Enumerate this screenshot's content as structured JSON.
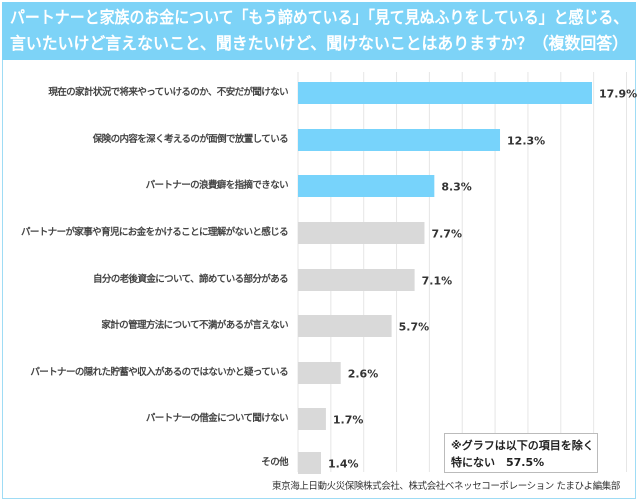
{
  "title_lines": [
    "パートナーと家族のお金について「もう諦めている」「見て見ぬふりをしている」と感じる、",
    "言いたいけど言えないこと、聞きたいけど、聞けないことはありますか？（複数回答）"
  ],
  "chart_data": {
    "type": "bar",
    "orientation": "horizontal",
    "categories": [
      "現在の家計状況で将来やっていけるのか、不安だが聞けない",
      "保険の内容を深く考えるのが面倒で放置している",
      "パートナーの浪費癖を指摘できない",
      "パートナーが家事や育児にお金をかけることに理解がないと感じる",
      "自分の老後資金について、諦めている部分がある",
      "家計の管理方法について不満があるが言えない",
      "パートナーの隠れた貯蓄や収入があるのではないかと疑っている",
      "パートナーの借金について聞けない",
      "その他"
    ],
    "values": [
      17.9,
      12.3,
      8.3,
      7.7,
      7.1,
      5.7,
      2.6,
      1.7,
      1.4
    ],
    "labels": [
      "17.9%",
      "12.3%",
      "8.3%",
      "7.7%",
      "7.1%",
      "5.7%",
      "2.6%",
      "1.7%",
      "1.4%"
    ],
    "highlight_count": 3,
    "colors": {
      "highlight": "#77d3fb",
      "default": "#d9d9d9",
      "grid": "#e6e6e6"
    },
    "xlim": [
      0,
      20
    ],
    "grid_step": 2,
    "grid": true
  },
  "note": {
    "line1": "※グラフは以下の項目を除く",
    "line2": "特にない　57.5%"
  },
  "source": "東京海上日動火災保険株式会社、株式会社ベネッセコーポレーション たまひよ編集部"
}
